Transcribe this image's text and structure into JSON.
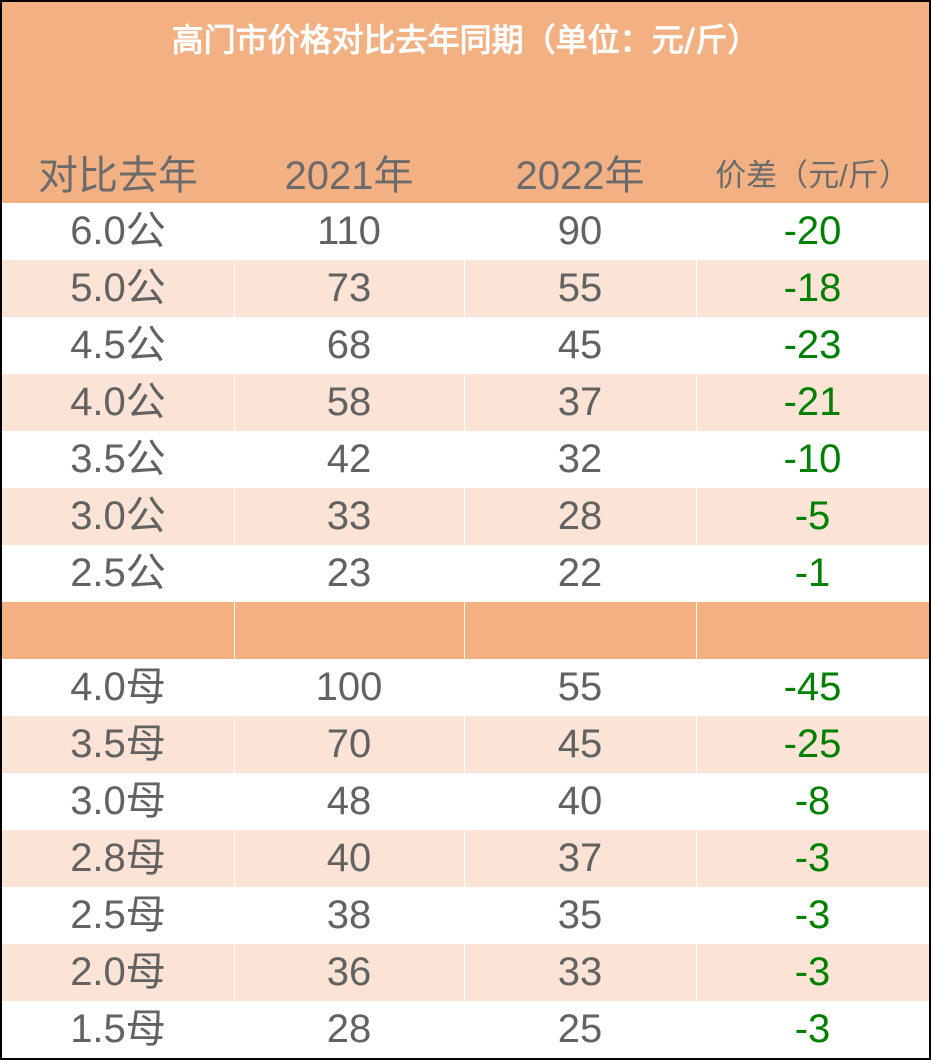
{
  "table": {
    "title": "高门市价格对比去年同期（单位：元/斤）",
    "headers": [
      "对比去年",
      "2021年",
      "2022年",
      "价差（元/斤）"
    ],
    "groups": [
      [
        [
          "6.0公",
          "110",
          "90",
          "-20"
        ],
        [
          "5.0公",
          "73",
          "55",
          "-18"
        ],
        [
          "4.5公",
          "68",
          "45",
          "-23"
        ],
        [
          "4.0公",
          "58",
          "37",
          "-21"
        ],
        [
          "3.5公",
          "42",
          "32",
          "-10"
        ],
        [
          "3.0公",
          "33",
          "28",
          "-5"
        ],
        [
          "2.5公",
          "23",
          "22",
          "-1"
        ]
      ],
      [
        [
          "4.0母",
          "100",
          "55",
          "-45"
        ],
        [
          "3.5母",
          "70",
          "45",
          "-25"
        ],
        [
          "3.0母",
          "48",
          "40",
          "-8"
        ],
        [
          "2.8母",
          "40",
          "37",
          "-3"
        ],
        [
          "2.5母",
          "38",
          "35",
          "-3"
        ],
        [
          "2.0母",
          "36",
          "33",
          "-3"
        ],
        [
          "1.5母",
          "28",
          "25",
          "-3"
        ]
      ]
    ]
  },
  "colors": {
    "header_bg": "#f3b183",
    "band_bg": "#fbe3d6",
    "text_gray": "#626262",
    "diff_green": "#008000"
  }
}
